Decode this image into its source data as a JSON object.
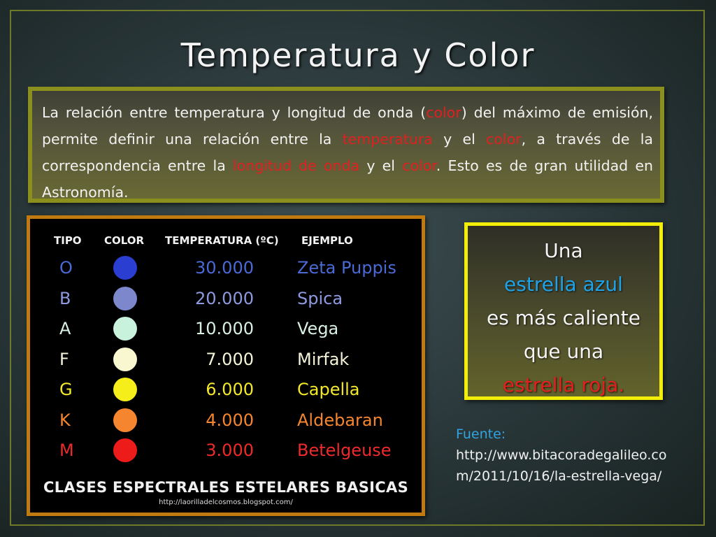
{
  "slide": {
    "title": "Temperatura y Color"
  },
  "intro": {
    "segments": [
      {
        "text": "La relación entre temperatura y longitud de onda (",
        "highlight": false
      },
      {
        "text": "color",
        "highlight": true
      },
      {
        "text": ") del máximo de emisión, permite definir una relación entre la ",
        "highlight": false
      },
      {
        "text": "temperatura",
        "highlight": true
      },
      {
        "text": " y el ",
        "highlight": false
      },
      {
        "text": "color",
        "highlight": true
      },
      {
        "text": ", a través de la correspondencia entre la ",
        "highlight": false
      },
      {
        "text": "longitud de onda",
        "highlight": true
      },
      {
        "text": " y el ",
        "highlight": false
      },
      {
        "text": "color",
        "highlight": true
      },
      {
        "text": ". Esto es de gran utilidad en Astronomía.",
        "highlight": false
      }
    ],
    "highlight_color": "#e02020"
  },
  "table": {
    "headers": {
      "tipo": "TIPO",
      "color": "COLOR",
      "temperatura": "TEMPERATURA (ºC)",
      "ejemplo": "EJEMPLO"
    },
    "rows": [
      {
        "tipo": "O",
        "temperatura": "30.000",
        "ejemplo": "Zeta Puppis",
        "dot_color": "#2a3fd2",
        "text_color": "#4a6ad6"
      },
      {
        "tipo": "B",
        "temperatura": "20.000",
        "ejemplo": "Spica",
        "dot_color": "#7c87cc",
        "text_color": "#8e9ae0"
      },
      {
        "tipo": "A",
        "temperatura": "10.000",
        "ejemplo": "Vega",
        "dot_color": "#c8f2dc",
        "text_color": "#d8f0e2"
      },
      {
        "tipo": "F",
        "temperatura": "7.000",
        "ejemplo": "Mirfak",
        "dot_color": "#f8f7cf",
        "text_color": "#f5f4d8"
      },
      {
        "tipo": "G",
        "temperatura": "6.000",
        "ejemplo": "Capella",
        "dot_color": "#f6ee1a",
        "text_color": "#f3e82a"
      },
      {
        "tipo": "K",
        "temperatura": "4.000",
        "ejemplo": "Aldebaran",
        "dot_color": "#f5862f",
        "text_color": "#f5862f"
      },
      {
        "tipo": "M",
        "temperatura": "3.000",
        "ejemplo": "Betelgeuse",
        "dot_color": "#ee1b1b",
        "text_color": "#ee2a2a"
      }
    ],
    "caption": "CLASES ESPECTRALES ESTELARES BASICAS",
    "caption_url": "http://laorilladelcosmos.blogspot.com/"
  },
  "callout": {
    "line1": "Una",
    "line2": "estrella azul",
    "line3": "es más caliente",
    "line4": "que una",
    "line5": "estrella roja."
  },
  "source": {
    "label": "Fuente:",
    "url": "http://www.bitacoradegalileo.com/2011/10/16/la-estrella-vega/"
  }
}
